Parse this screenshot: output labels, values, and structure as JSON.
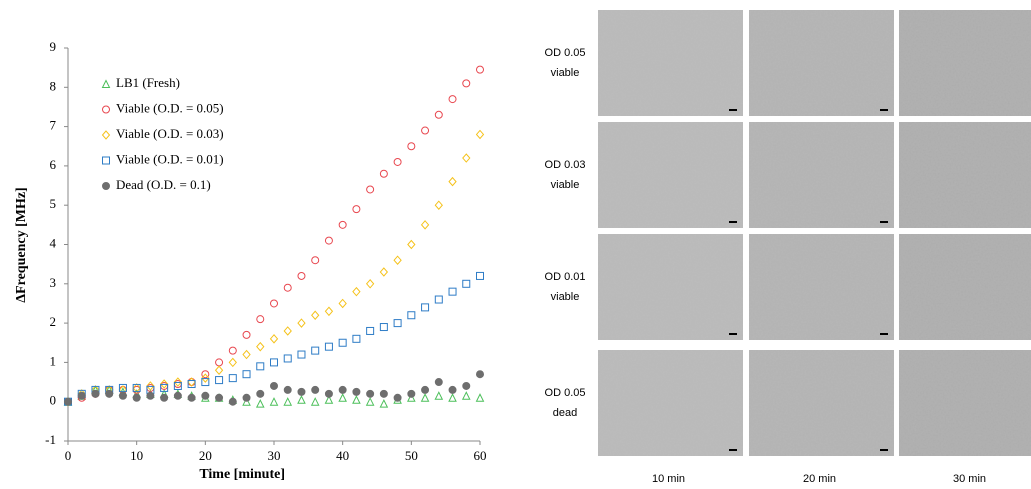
{
  "chart_data": {
    "type": "scatter",
    "x_label": "Time [minute]",
    "y_label": "ΔFrequency [MHz]",
    "x": [
      0,
      2,
      4,
      6,
      8,
      10,
      12,
      14,
      16,
      18,
      20,
      22,
      24,
      26,
      28,
      30,
      32,
      34,
      36,
      38,
      40,
      42,
      44,
      46,
      48,
      50,
      52,
      54,
      56,
      58,
      60
    ],
    "xlim": [
      0,
      60
    ],
    "xticks": [
      0,
      10,
      20,
      30,
      40,
      50,
      60
    ],
    "ylim": [
      -1,
      9
    ],
    "yticks": [
      -1,
      0,
      1,
      2,
      3,
      4,
      5,
      6,
      7,
      8,
      9
    ],
    "series": [
      {
        "name": "LB1 (Fresh)",
        "color": "#4cbf5a",
        "marker": "triangle",
        "values": [
          0,
          0.15,
          0.3,
          0.3,
          0.25,
          0.2,
          0.2,
          0.2,
          0.2,
          0.15,
          0.1,
          0.1,
          0.05,
          0,
          -0.05,
          0,
          0,
          0.05,
          0,
          0.05,
          0.1,
          0.05,
          0,
          -0.05,
          0.05,
          0.1,
          0.1,
          0.15,
          0.1,
          0.15,
          0.1
        ]
      },
      {
        "name": "Viable (O.D. = 0.05)",
        "color": "#e8474f",
        "marker": "circle",
        "values": [
          0,
          0.1,
          0.2,
          0.3,
          0.3,
          0.3,
          0.35,
          0.4,
          0.45,
          0.5,
          0.7,
          1.0,
          1.3,
          1.7,
          2.1,
          2.5,
          2.9,
          3.2,
          3.6,
          4.1,
          4.5,
          4.9,
          5.4,
          5.8,
          6.1,
          6.5,
          6.9,
          7.3,
          7.7,
          8.1,
          8.45
        ]
      },
      {
        "name": "Viable (O.D. = 0.03)",
        "color": "#f5c21b",
        "marker": "diamond",
        "values": [
          0,
          0.2,
          0.3,
          0.3,
          0.3,
          0.35,
          0.4,
          0.45,
          0.5,
          0.5,
          0.6,
          0.8,
          1.0,
          1.2,
          1.4,
          1.6,
          1.8,
          2.0,
          2.2,
          2.3,
          2.5,
          2.8,
          3.0,
          3.3,
          3.6,
          4.0,
          4.5,
          5.0,
          5.6,
          6.2,
          6.8
        ]
      },
      {
        "name": "Viable (O.D. = 0.01)",
        "color": "#2e7cc6",
        "marker": "square",
        "values": [
          0,
          0.2,
          0.3,
          0.3,
          0.35,
          0.35,
          0.3,
          0.35,
          0.4,
          0.45,
          0.5,
          0.55,
          0.6,
          0.7,
          0.9,
          1.0,
          1.1,
          1.2,
          1.3,
          1.4,
          1.5,
          1.6,
          1.8,
          1.9,
          2.0,
          2.2,
          2.4,
          2.6,
          2.8,
          3.0,
          3.2
        ]
      },
      {
        "name": "Dead (O.D. = 0.1)",
        "color": "#6e6e6e",
        "marker": "dot",
        "values": [
          0,
          0.15,
          0.2,
          0.2,
          0.15,
          0.1,
          0.15,
          0.1,
          0.15,
          0.1,
          0.15,
          0.1,
          0,
          0.1,
          0.2,
          0.4,
          0.3,
          0.25,
          0.3,
          0.2,
          0.3,
          0.25,
          0.2,
          0.2,
          0.1,
          0.2,
          0.3,
          0.5,
          0.3,
          0.4,
          0.7
        ]
      }
    ]
  },
  "image_grid": {
    "rows": [
      [
        "OD 0.05",
        "viable"
      ],
      [
        "OD 0.03",
        "viable"
      ],
      [
        "OD 0.01",
        "viable"
      ],
      [
        "OD 0.05",
        "dead"
      ]
    ],
    "columns": [
      "10 min",
      "20 min",
      "30 min"
    ]
  }
}
